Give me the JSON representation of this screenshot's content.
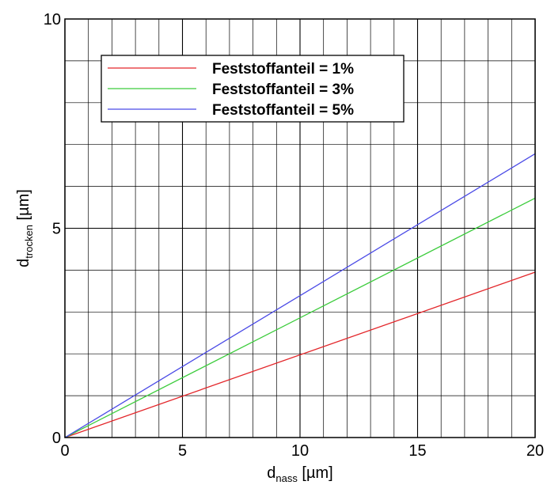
{
  "chart_data": {
    "type": "line",
    "x": [
      0,
      20
    ],
    "series": [
      {
        "name": "Feststoffanteil = 1%",
        "color": "#e3262a",
        "values": [
          0,
          3.95
        ]
      },
      {
        "name": "Feststoffanteil = 3%",
        "color": "#3ccc3c",
        "values": [
          0,
          5.72
        ]
      },
      {
        "name": "Feststoffanteil = 5%",
        "color": "#4a4ae6",
        "values": [
          0,
          6.78
        ]
      }
    ],
    "xlabel": {
      "main": "d",
      "sub": "nass",
      "unit": " [µm]"
    },
    "ylabel": {
      "main": "d",
      "sub": "trocken",
      "unit": " [µm]"
    },
    "xlim": [
      0,
      20
    ],
    "ylim": [
      0,
      10
    ],
    "x_major_ticks": [
      0,
      5,
      10,
      15,
      20
    ],
    "y_major_ticks": [
      0,
      5,
      10
    ],
    "x_tick_labels": [
      "0",
      "5",
      "10",
      "15",
      "20"
    ],
    "y_tick_labels": [
      "0",
      "5",
      "10"
    ],
    "x_minor_step": 1,
    "y_minor_step": 1,
    "grid": true,
    "legend_position": "top-center"
  }
}
